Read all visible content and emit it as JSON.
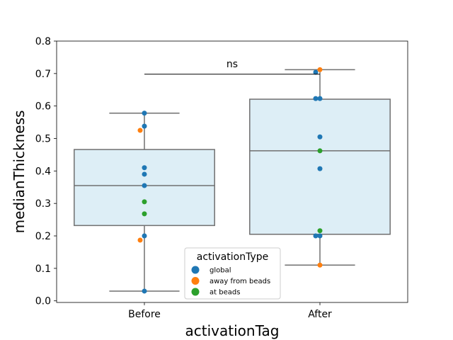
{
  "chart_data": {
    "type": "box",
    "xlabel": "activationTag",
    "ylabel": "medianThickness",
    "categories": [
      "Before",
      "After"
    ],
    "ylim": [
      -0.005,
      0.8
    ],
    "yticks": [
      0.0,
      0.1,
      0.2,
      0.3,
      0.4,
      0.5,
      0.6,
      0.7,
      0.8
    ],
    "ytick_labels": [
      "0.0",
      "0.1",
      "0.2",
      "0.3",
      "0.4",
      "0.5",
      "0.6",
      "0.7",
      "0.8"
    ],
    "grid": false,
    "box_fill": "#ddeef6",
    "box_edge": "#707070",
    "boxes": [
      {
        "category": "Before",
        "whisker_low": 0.03,
        "q1": 0.232,
        "median": 0.355,
        "q3": 0.466,
        "whisker_high": 0.578
      },
      {
        "category": "After",
        "whisker_low": 0.11,
        "q1": 0.205,
        "median": 0.462,
        "q3": 0.621,
        "whisker_high": 0.712
      }
    ],
    "points": [
      {
        "category": "Before",
        "type": "global",
        "y": 0.578
      },
      {
        "category": "Before",
        "type": "global",
        "y": 0.538
      },
      {
        "category": "Before",
        "type": "away from beads",
        "y": 0.525
      },
      {
        "category": "Before",
        "type": "global",
        "y": 0.41
      },
      {
        "category": "Before",
        "type": "global",
        "y": 0.39
      },
      {
        "category": "Before",
        "type": "global",
        "y": 0.355
      },
      {
        "category": "Before",
        "type": "at beads",
        "y": 0.305
      },
      {
        "category": "Before",
        "type": "at beads",
        "y": 0.268
      },
      {
        "category": "Before",
        "type": "global",
        "y": 0.2
      },
      {
        "category": "Before",
        "type": "away from beads",
        "y": 0.187
      },
      {
        "category": "Before",
        "type": "global",
        "y": 0.03
      },
      {
        "category": "After",
        "type": "away from beads",
        "y": 0.712
      },
      {
        "category": "After",
        "type": "global",
        "y": 0.704
      },
      {
        "category": "After",
        "type": "global",
        "y": 0.623
      },
      {
        "category": "After",
        "type": "global",
        "y": 0.623
      },
      {
        "category": "After",
        "type": "global",
        "y": 0.505
      },
      {
        "category": "After",
        "type": "at beads",
        "y": 0.462
      },
      {
        "category": "After",
        "type": "global",
        "y": 0.407
      },
      {
        "category": "After",
        "type": "at beads",
        "y": 0.216
      },
      {
        "category": "After",
        "type": "global",
        "y": 0.2
      },
      {
        "category": "After",
        "type": "global",
        "y": 0.2
      },
      {
        "category": "After",
        "type": "away from beads",
        "y": 0.11
      }
    ],
    "legend": {
      "title": "activationType",
      "placement": "lower-center",
      "entries": [
        {
          "label": "global",
          "color": "#1f77b4"
        },
        {
          "label": "away from beads",
          "color": "#ff7f0e"
        },
        {
          "label": "at beads",
          "color": "#2ca02c"
        }
      ]
    },
    "annotation": {
      "text": "ns",
      "y": 0.698
    }
  }
}
